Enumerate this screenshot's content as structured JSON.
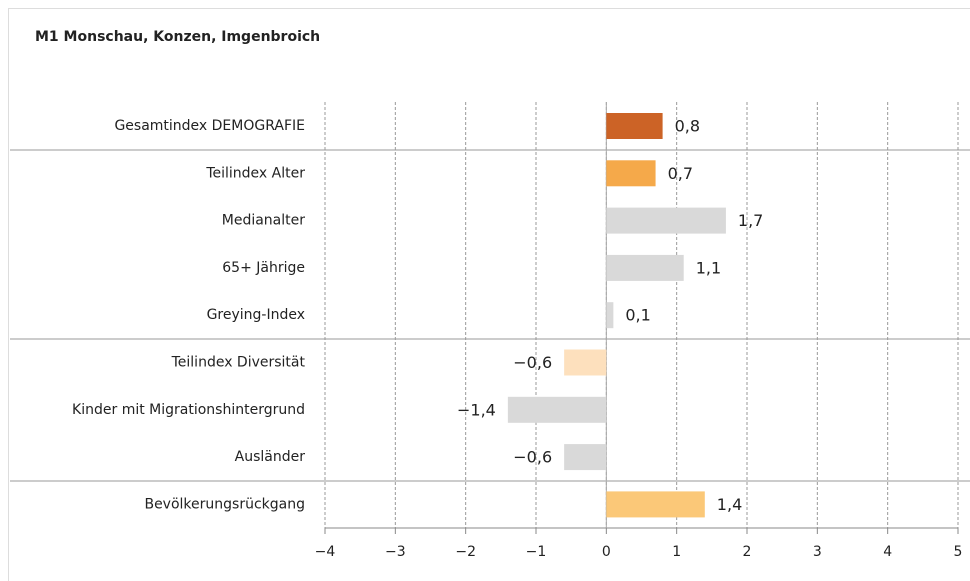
{
  "chart_data": {
    "type": "bar",
    "orientation": "horizontal",
    "title": "M1 Monschau, Konzen, Imgenbroich",
    "categories": [
      "Gesamtindex DEMOGRAFIE",
      "Teilindex Alter",
      "Medianalter",
      "65+ Jährige",
      "Greying-Index",
      "Teilindex Diversität",
      "Kinder mit Migrationshintergrund",
      "Ausländer",
      "Bevölkerungsrückgang"
    ],
    "values": [
      0.8,
      0.7,
      1.7,
      1.1,
      0.1,
      -0.6,
      -1.4,
      -0.6,
      1.4
    ],
    "value_labels": [
      "0,8",
      "0,7",
      "1,7",
      "1,1",
      "0,1",
      "−0,6",
      "−1,4",
      "−0,6",
      "1,4"
    ],
    "colors": [
      "#cc6326",
      "#f5a94a",
      "#d9d9d9",
      "#d9d9d9",
      "#d9d9d9",
      "#fde0bd",
      "#d9d9d9",
      "#d9d9d9",
      "#fbc878"
    ],
    "xlim": [
      -4,
      5
    ],
    "xticks": [
      {
        "value": -4,
        "label": "−4"
      },
      {
        "value": -3,
        "label": "−3"
      },
      {
        "value": -2,
        "label": "−2"
      },
      {
        "value": -1,
        "label": "−1"
      },
      0,
      1,
      2,
      3,
      4,
      5
    ],
    "grid": true
  }
}
